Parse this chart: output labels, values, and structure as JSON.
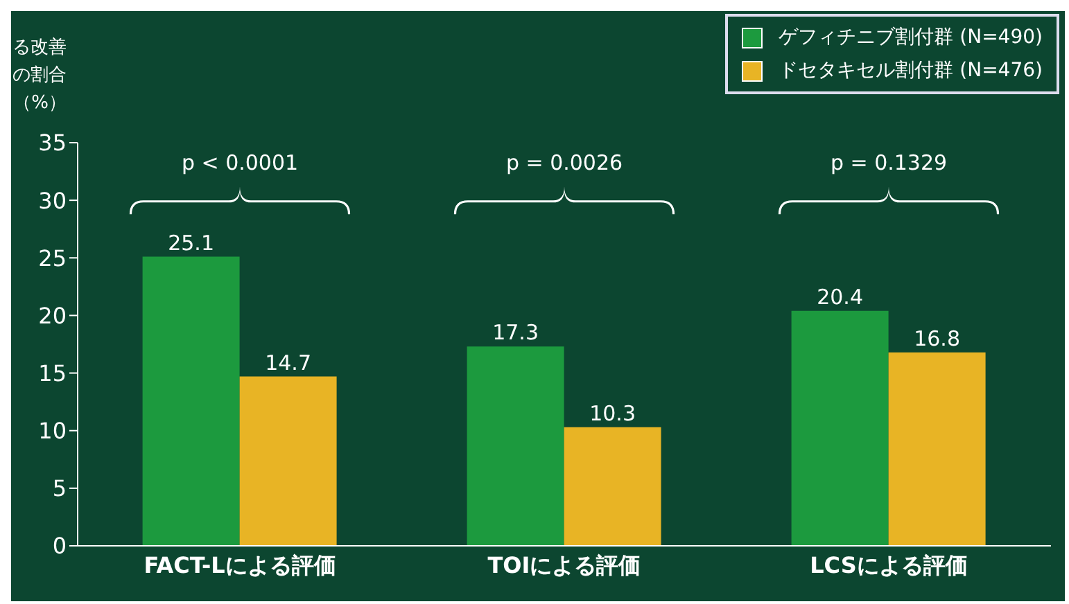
{
  "chart_data": {
    "type": "bar",
    "ylabel": "る改善の割合（%）",
    "categories": [
      "FACT-Lによる評価",
      "TOIによる評価",
      "LCSによる評価"
    ],
    "series": [
      {
        "name": "ゲフィチニブ割付群 (N=490)",
        "color": "#1c9a3e",
        "values": [
          25.1,
          17.3,
          20.4
        ]
      },
      {
        "name": "ドセタキセル割付群 (N=476)",
        "color": "#e8b425",
        "values": [
          14.7,
          10.3,
          16.8
        ]
      }
    ],
    "ylim": [
      0,
      35
    ],
    "yticks": [
      0,
      5,
      10,
      15,
      20,
      25,
      30,
      35
    ],
    "data_labels": true,
    "legend": "top right",
    "grid": false,
    "annotations": [
      "p < 0.0001",
      "p = 0.0026",
      "p = 0.1329"
    ]
  }
}
